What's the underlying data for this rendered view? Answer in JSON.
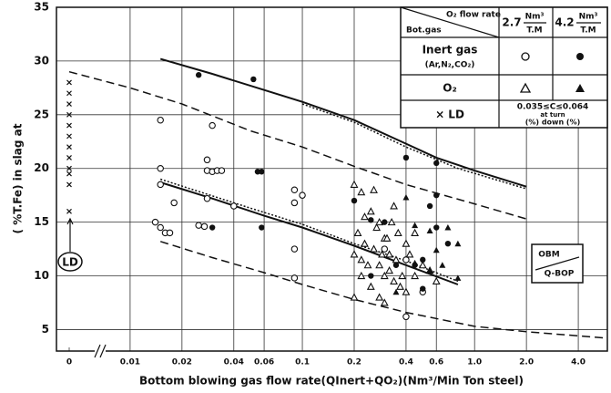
{
  "chart_data": {
    "type": "scatter",
    "ylabel": "( %T.Fe) in slag at",
    "xlabel": "Bottom blowing gas flow rate(QInert+QO₂)(Nm³/Min Ton steel)",
    "xscale": "log",
    "xlim": [
      0.0067,
      5.9
    ],
    "ylim": [
      3,
      35
    ],
    "xticks": [
      0,
      0.01,
      0.02,
      0.04,
      0.06,
      0.1,
      0.2,
      0.4,
      0.6,
      {
        "value": 1,
        "label": "1.0"
      },
      {
        "value": 2,
        "label": "2.0"
      },
      {
        "value": 4,
        "label": "4.0"
      }
    ],
    "yticks": [
      5,
      10,
      15,
      20,
      25,
      30,
      35
    ],
    "grid": true,
    "series": [
      {
        "marker": "circle-open",
        "color": "#111",
        "x": [
          0.015,
          0.015,
          0.015,
          0.014,
          0.015,
          0.016,
          0.017,
          0.018,
          0.025,
          0.027,
          0.028,
          0.028,
          0.03,
          0.028,
          0.03,
          0.032,
          0.034,
          0.04,
          0.09,
          0.09,
          0.1,
          0.09,
          0.09,
          0.3,
          0.4,
          0.4,
          0.5
        ],
        "values": [
          24.5,
          20,
          18.5,
          15,
          14.5,
          14,
          14,
          16.8,
          14.7,
          14.6,
          17.2,
          19.8,
          24,
          20.8,
          19.7,
          19.8,
          19.8,
          16.5,
          18,
          16.8,
          17.5,
          12.5,
          9.8,
          12.5,
          11.5,
          6.2,
          8.5
        ]
      },
      {
        "marker": "circle-filled",
        "color": "#111",
        "x": [
          0.025,
          0.052,
          0.055,
          0.058,
          0.058,
          0.03,
          0.25,
          0.3,
          0.35,
          0.4,
          0.45,
          0.5,
          0.55,
          0.6,
          0.6,
          0.6,
          0.7,
          0.5,
          0.25,
          0.2
        ],
        "values": [
          28.7,
          28.3,
          19.7,
          19.7,
          14.5,
          14.5,
          15.2,
          15,
          11,
          21,
          11,
          11.5,
          16.5,
          17.5,
          14.5,
          20.5,
          13,
          8.8,
          10,
          17
        ]
      },
      {
        "marker": "triangle-open",
        "color": "#111",
        "x": [
          0.2,
          0.2,
          0.21,
          0.22,
          0.22,
          0.23,
          0.24,
          0.25,
          0.25,
          0.26,
          0.27,
          0.28,
          0.28,
          0.3,
          0.3,
          0.3,
          0.32,
          0.33,
          0.34,
          0.35,
          0.36,
          0.38,
          0.4,
          0.4,
          0.42,
          0.45,
          0.45,
          0.5,
          0.55,
          0.6,
          0.2,
          0.23,
          0.26,
          0.29,
          0.31,
          0.34,
          0.37,
          0.22,
          0.28,
          0.32
        ],
        "values": [
          18.5,
          12,
          14,
          17.8,
          10,
          13,
          11,
          16,
          9,
          12.5,
          14.5,
          8,
          11,
          13.5,
          10,
          7.5,
          12,
          15,
          9.5,
          11.5,
          14,
          10,
          13,
          8.5,
          12,
          10,
          14,
          11,
          10.5,
          9.5,
          8,
          15.5,
          18,
          12,
          13.5,
          16.5,
          9,
          11.5,
          15,
          10.5
        ]
      },
      {
        "marker": "triangle-filled",
        "color": "#111",
        "x": [
          0.4,
          0.45,
          0.55,
          0.6,
          0.7,
          0.8,
          0.8,
          0.65,
          0.55,
          0.35,
          0.45
        ],
        "values": [
          17.3,
          14.7,
          14.2,
          12.4,
          14.5,
          13,
          9.8,
          11,
          10.5,
          8.5,
          11.2
        ]
      },
      {
        "marker": "cross",
        "color": "#111",
        "x": [
          0,
          0,
          0,
          0,
          0,
          0,
          0,
          0,
          0,
          0,
          0,
          0
        ],
        "values": [
          16,
          18.5,
          19.5,
          20,
          21,
          22,
          23,
          24,
          25,
          26,
          27,
          28
        ]
      }
    ],
    "curves": [
      {
        "style": "solid",
        "x": [
          0.015,
          0.03,
          0.06,
          0.1,
          0.2,
          0.4,
          0.6,
          1,
          2
        ],
        "values": [
          30.2,
          28.8,
          27.3,
          26.2,
          24.5,
          22.3,
          21,
          19.8,
          18.3
        ]
      },
      {
        "style": "dotted",
        "x": [
          0.1,
          0.2,
          0.4,
          0.8,
          2
        ],
        "values": [
          26,
          24.3,
          22,
          20,
          18.1
        ]
      },
      {
        "style": "dashed",
        "x": [
          0,
          0.01,
          0.02,
          0.05,
          0.1,
          0.2,
          0.4,
          1,
          2
        ],
        "values": [
          29,
          27.5,
          26,
          23.5,
          22,
          20.2,
          18.5,
          16.7,
          15.3
        ]
      },
      {
        "style": "solid",
        "x": [
          0.015,
          0.03,
          0.06,
          0.1,
          0.2,
          0.4,
          0.8
        ],
        "values": [
          18.7,
          17.2,
          15.6,
          14.5,
          12.8,
          11,
          9.2
        ]
      },
      {
        "style": "dotted",
        "x": [
          0.015,
          0.05,
          0.1,
          0.2,
          0.4,
          0.8
        ],
        "values": [
          19,
          16.3,
          14.8,
          13,
          11.4,
          9.5
        ]
      },
      {
        "style": "dashed",
        "x": [
          0.015,
          0.03,
          0.06,
          0.1,
          0.2,
          0.4,
          1,
          2,
          5.9
        ],
        "values": [
          13.2,
          11.7,
          10.3,
          9.2,
          7.8,
          6.6,
          5.3,
          4.8,
          4.2
        ]
      }
    ],
    "annotations": {
      "ld": "LD",
      "obm": "OBM",
      "qbop": "Q-BOP"
    },
    "legend": {
      "header": {
        "flow": "O₂ flow rate",
        "gas": "Bot.gas",
        "col1": "2.7",
        "col2": "4.2",
        "unit_top": "Nm³",
        "unit_bottom": "T.M"
      },
      "rows": {
        "inert": "Inert gas",
        "inert_sub": "(Ar,N₂,CO₂)",
        "o2": "O₂",
        "ld": "× LD",
        "cond": "0.035≤C≤0.064",
        "cond_mid": "at turn",
        "cond_bottom": "(%)  down  (%)"
      }
    }
  }
}
